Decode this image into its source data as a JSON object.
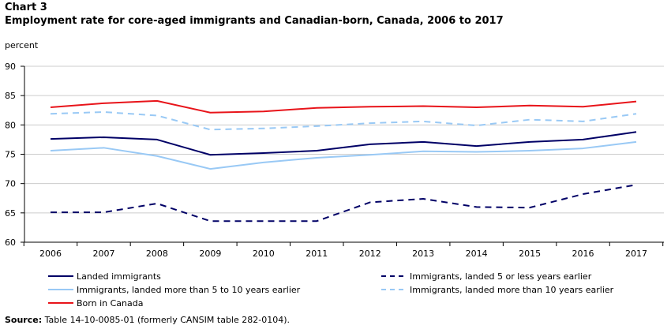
{
  "header": {
    "chart_number": "Chart 3",
    "title": "Employment rate for core-aged immigrants and Canadian-born, Canada, 2006 to 2017",
    "unit_label": "percent"
  },
  "source": {
    "label": "Source:",
    "text": " Table 14-10-0085-01 (formerly CANSIM table 282-0104)."
  },
  "chart_data": {
    "type": "line",
    "title": "Employment rate for core-aged immigrants and Canadian-born, Canada, 2006 to 2017",
    "ylabel": "percent",
    "xlabel": "",
    "ylim": [
      60,
      90
    ],
    "yticks": [
      60,
      65,
      70,
      75,
      80,
      85,
      90
    ],
    "grid": true,
    "legend_position": "bottom",
    "x": [
      "2006",
      "2007",
      "2008",
      "2009",
      "2010",
      "2011",
      "2012",
      "2013",
      "2014",
      "2015",
      "2016",
      "2017"
    ],
    "series": [
      {
        "name": "Landed immigrants",
        "color": "#000066",
        "dash": "solid",
        "values": [
          77.6,
          77.9,
          77.5,
          74.9,
          75.2,
          75.6,
          76.7,
          77.1,
          76.4,
          77.1,
          77.5,
          78.8
        ]
      },
      {
        "name": "Immigrants, landed 5 or less years earlier",
        "color": "#000066",
        "dash": "dashed",
        "values": [
          65.1,
          65.1,
          66.6,
          63.6,
          63.6,
          63.6,
          66.8,
          67.4,
          66.0,
          65.9,
          68.2,
          69.8
        ]
      },
      {
        "name": "Immigrants, landed more than 5 to 10 years earlier",
        "color": "#99c9f5",
        "dash": "solid",
        "values": [
          75.6,
          76.1,
          74.7,
          72.5,
          73.6,
          74.4,
          74.9,
          75.5,
          75.4,
          75.6,
          76.0,
          77.1
        ]
      },
      {
        "name": "Immigrants, landed more than 10 years earlier",
        "color": "#99c9f5",
        "dash": "dashed",
        "values": [
          81.9,
          82.2,
          81.6,
          79.2,
          79.4,
          79.8,
          80.3,
          80.6,
          79.9,
          80.9,
          80.6,
          81.9
        ]
      },
      {
        "name": "Born in Canada",
        "color": "#e8141a",
        "dash": "solid",
        "values": [
          83.0,
          83.7,
          84.1,
          82.1,
          82.3,
          82.9,
          83.1,
          83.2,
          83.0,
          83.3,
          83.1,
          84.0
        ]
      }
    ]
  }
}
